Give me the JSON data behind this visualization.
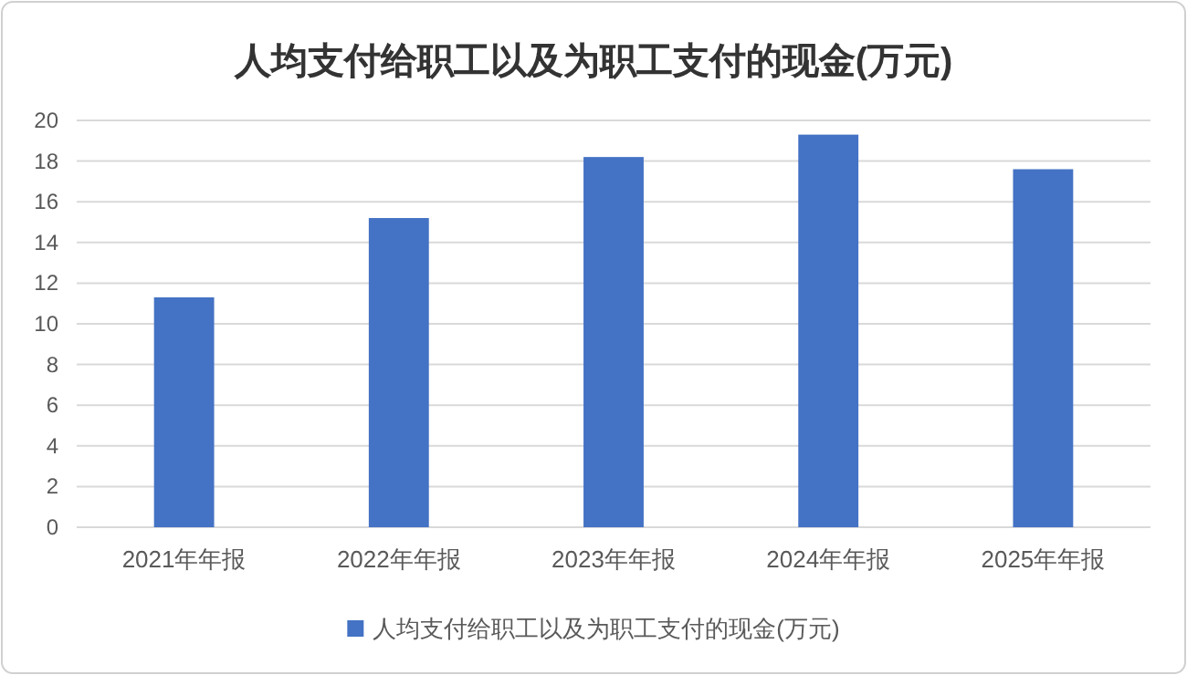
{
  "chart_data": {
    "type": "bar",
    "title": "人均支付给职工以及为职工支付的现金(万元)",
    "categories": [
      "2021年年报",
      "2022年年报",
      "2023年年报",
      "2024年年报",
      "2025年年报"
    ],
    "series": [
      {
        "name": "人均支付给职工以及为职工支付的现金(万元)",
        "color": "#4472c4",
        "values": [
          11.3,
          15.2,
          18.2,
          19.3,
          17.6
        ]
      }
    ],
    "ylim": [
      0,
      20
    ],
    "yticks": [
      0,
      2,
      4,
      6,
      8,
      10,
      12,
      14,
      16,
      18,
      20
    ],
    "grid": "y",
    "legend": "bottom"
  }
}
